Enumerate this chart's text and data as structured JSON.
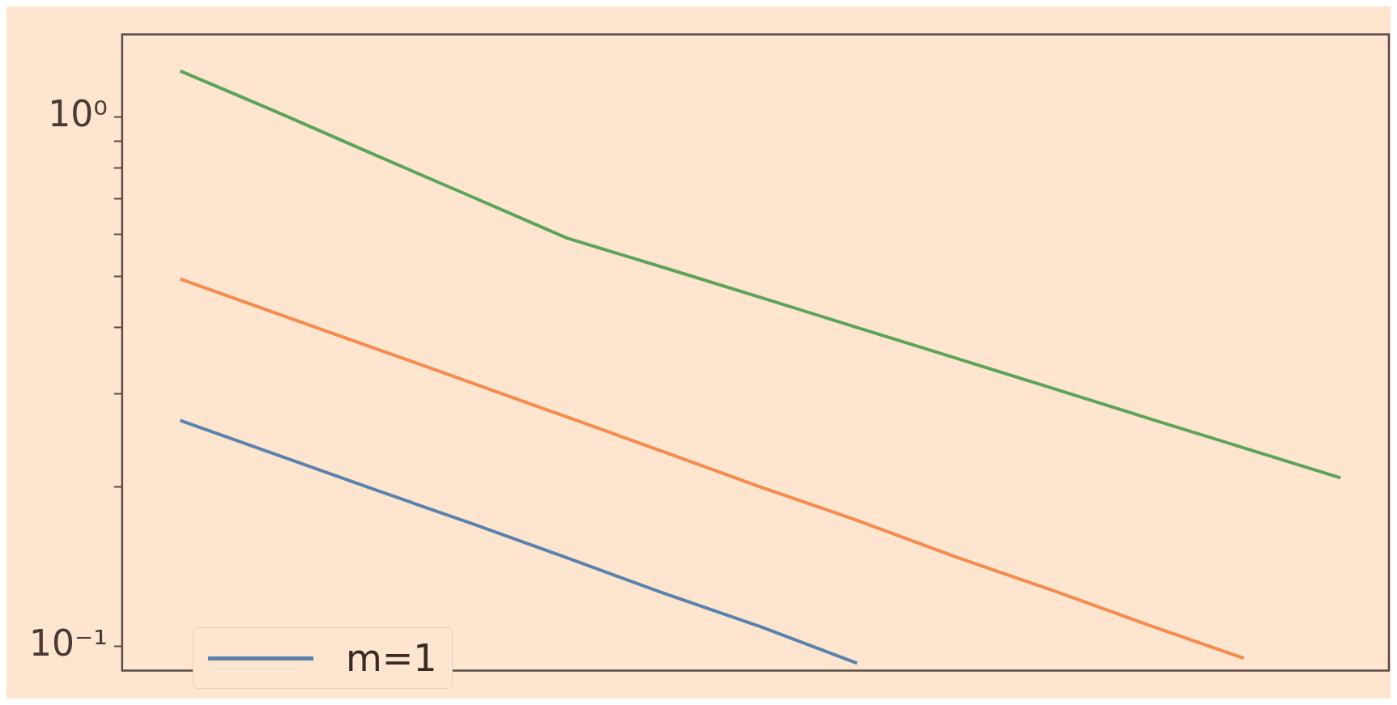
{
  "chart_data": {
    "type": "line",
    "log": "y",
    "categories": [
      null,
      null,
      null,
      null,
      null,
      null,
      null,
      null,
      null,
      null,
      null,
      null,
      null
    ],
    "ylim": [
      0.09,
      1.43
    ],
    "yticks": [
      {
        "value": 0.1,
        "label": "10⁻¹"
      },
      {
        "value": 0.2,
        "label": null
      },
      {
        "value": 0.3,
        "label": null
      },
      {
        "value": 0.4,
        "label": null
      },
      {
        "value": 0.5,
        "label": null
      },
      {
        "value": 0.6,
        "label": null
      },
      {
        "value": 0.7,
        "label": null
      },
      {
        "value": 0.8,
        "label": null
      },
      {
        "value": 0.9,
        "label": null
      },
      {
        "value": 1,
        "label": "10⁰"
      }
    ],
    "tick_labels": "y",
    "grid": false,
    "legend": "bottom left",
    "series": [
      {
        "name": "m=1",
        "color": "#5b82ad",
        "values": [
          0.267,
          0.23,
          0.198,
          0.171,
          0.147,
          0.126,
          0.109,
          0.093,
          null,
          null,
          null,
          null,
          null
        ]
      },
      {
        "color": "#f58b4c",
        "values": [
          0.494,
          0.425,
          0.366,
          0.315,
          0.271,
          0.233,
          0.2,
          0.173,
          0.148,
          0.128,
          0.11,
          0.095,
          null
        ]
      },
      {
        "color": "#5ea35a",
        "values": [
          1.22,
          1.02,
          0.849,
          0.708,
          0.59,
          0.519,
          0.456,
          0.4,
          0.351,
          0.308,
          0.27,
          0.237,
          0.208
        ]
      }
    ]
  }
}
